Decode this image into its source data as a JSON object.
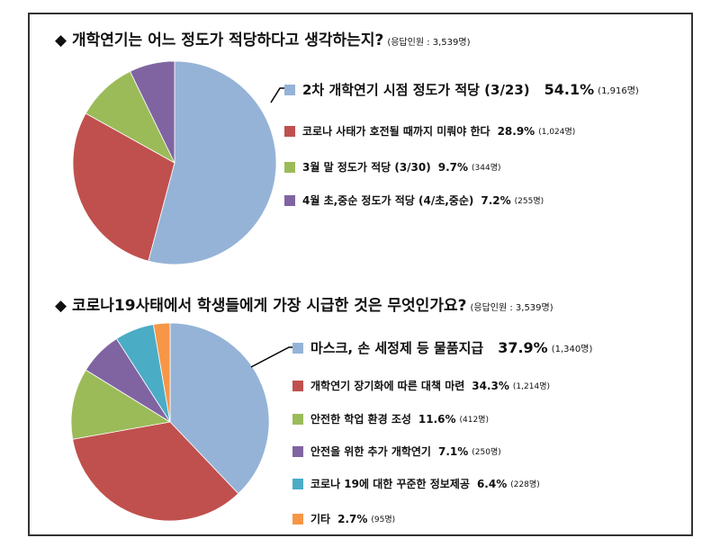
{
  "chart_data": [
    {
      "type": "pie",
      "title": "◆ 개학연기는 어느 정도가 적당하다고 생각하는지?",
      "subtitle": "(응답인원 : 3,539명)",
      "slices": [
        {
          "label": "2차 개학연기 시점 정도가 적당 (3/23)",
          "value": 54.1,
          "count": "(1,916명)",
          "color": "#95b3d7"
        },
        {
          "label": "코로나 사태가 호전될 때까지 미뤄야 한다",
          "value": 28.9,
          "count": "(1,024명)",
          "color": "#c0504d"
        },
        {
          "label": "3월 말 정도가 적당 (3/30)",
          "value": 9.7,
          "count": "(344명)",
          "color": "#9bbb59"
        },
        {
          "label": "4월 초,중순 정도가 적당 (4/초,중순)",
          "value": 7.2,
          "count": "(255명)",
          "color": "#8064a2"
        }
      ]
    },
    {
      "type": "pie",
      "title": "◆ 코로나19사태에서 학생들에게 가장 시급한 것은 무엇인가요?",
      "subtitle": "(응답인원 : 3,539명)",
      "slices": [
        {
          "label": "마스크, 손 세정제 등 물품지급",
          "value": 37.9,
          "count": "(1,340명)",
          "color": "#95b3d7"
        },
        {
          "label": "개학연기 장기화에 따른 대책 마련",
          "value": 34.3,
          "count": "(1,214명)",
          "color": "#c0504d"
        },
        {
          "label": "안전한 학업 환경 조성",
          "value": 11.6,
          "count": "(412명)",
          "color": "#9bbb59"
        },
        {
          "label": "안전을 위한 추가 개학연기",
          "value": 7.1,
          "count": "(250명)",
          "color": "#8064a2"
        },
        {
          "label": "코로나 19에 대한 꾸준한 정보제공",
          "value": 6.4,
          "count": "(228명)",
          "color": "#4bacc6"
        },
        {
          "label": "기타",
          "value": 2.7,
          "count": "(95명)",
          "color": "#f79646"
        }
      ]
    }
  ]
}
